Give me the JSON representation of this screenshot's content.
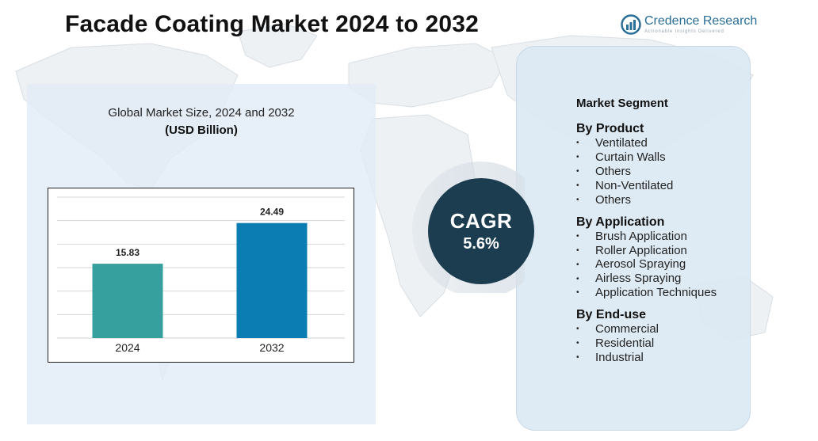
{
  "header": {
    "title": "Facade Coating Market 2024 to 2032",
    "logo_name": "Credence Research",
    "logo_tagline": "Actionable Insights Delivered",
    "logo_icon": "bar-chart-circle-icon"
  },
  "chart": {
    "title": "Global Market Size, 2024 and 2032",
    "unit": "(USD Billion)"
  },
  "chart_data": {
    "type": "bar",
    "categories": [
      "2024",
      "2032"
    ],
    "values": [
      15.83,
      24.49
    ],
    "value_labels": [
      "15.83",
      "24.49"
    ],
    "colors": [
      "#35a09e",
      "#0b7db3"
    ],
    "title": "Global Market Size, 2024 and 2032",
    "xlabel": "",
    "ylabel": "(USD Billion)",
    "ylim": [
      0,
      30
    ],
    "grid": true,
    "legend": "none"
  },
  "cagr": {
    "label": "CAGR",
    "value": "5.6%"
  },
  "segments": {
    "heading": "Market Segment",
    "bullet": "•",
    "groups": [
      {
        "title": "By Product",
        "items": [
          "Ventilated",
          "Curtain Walls",
          "Others",
          "Non-Ventilated",
          "Others"
        ]
      },
      {
        "title": "By Application",
        "items": [
          "Brush Application",
          "Roller Application",
          "Aerosol Spraying",
          "Airless Spraying",
          "Application Techniques"
        ]
      },
      {
        "title": "By End-use",
        "items": [
          "Commercial",
          "Residential",
          "Industrial"
        ]
      }
    ]
  },
  "colors": {
    "title_text": "#111111",
    "brand": "#2a6f97",
    "cagr_circle": "#1c3d50",
    "panel_bg": "#dfeaf5"
  }
}
